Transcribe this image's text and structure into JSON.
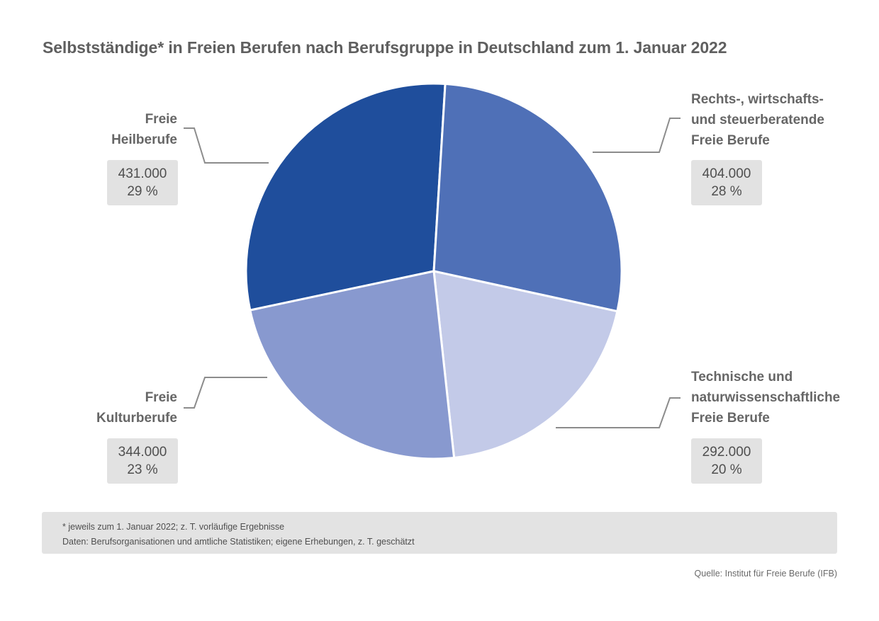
{
  "title": "Selbstständige* in Freien Berufen nach Berufsgruppe in Deutschland zum 1. Januar 2022",
  "chart_data": {
    "type": "pie",
    "title": "Selbstständige* in Freien Berufen nach Berufsgruppe in Deutschland zum 1. Januar 2022",
    "slices": [
      {
        "label_lines": [
          "Freie",
          "Heilberufe"
        ],
        "value": 431000,
        "value_label": "431.000",
        "percent_label": "29 %",
        "color": "#1f4e9c"
      },
      {
        "label_lines": [
          "Rechts-, wirtschafts-",
          "und steuerberatende",
          "Freie Berufe"
        ],
        "value": 404000,
        "value_label": "404.000",
        "percent_label": "28 %",
        "color": "#4f70b7"
      },
      {
        "label_lines": [
          "Technische und",
          "naturwissenschaftliche",
          "Freie Berufe"
        ],
        "value": 292000,
        "value_label": "292.000",
        "percent_label": "20 %",
        "color": "#c3cae8"
      },
      {
        "label_lines": [
          "Freie",
          "Kulturberufe"
        ],
        "value": 344000,
        "value_label": "344.000",
        "percent_label": "23 %",
        "color": "#8899cf"
      }
    ]
  },
  "footnote": {
    "line1": "* jeweils zum 1. Januar 2022; z. T. vorläufige Ergebnisse",
    "line2": "Daten: Berufsorganisationen und amtliche Statistiken; eigene Erhebungen, z. T. geschätzt"
  },
  "source": "Quelle: Institut für Freie Berufe (IFB)"
}
